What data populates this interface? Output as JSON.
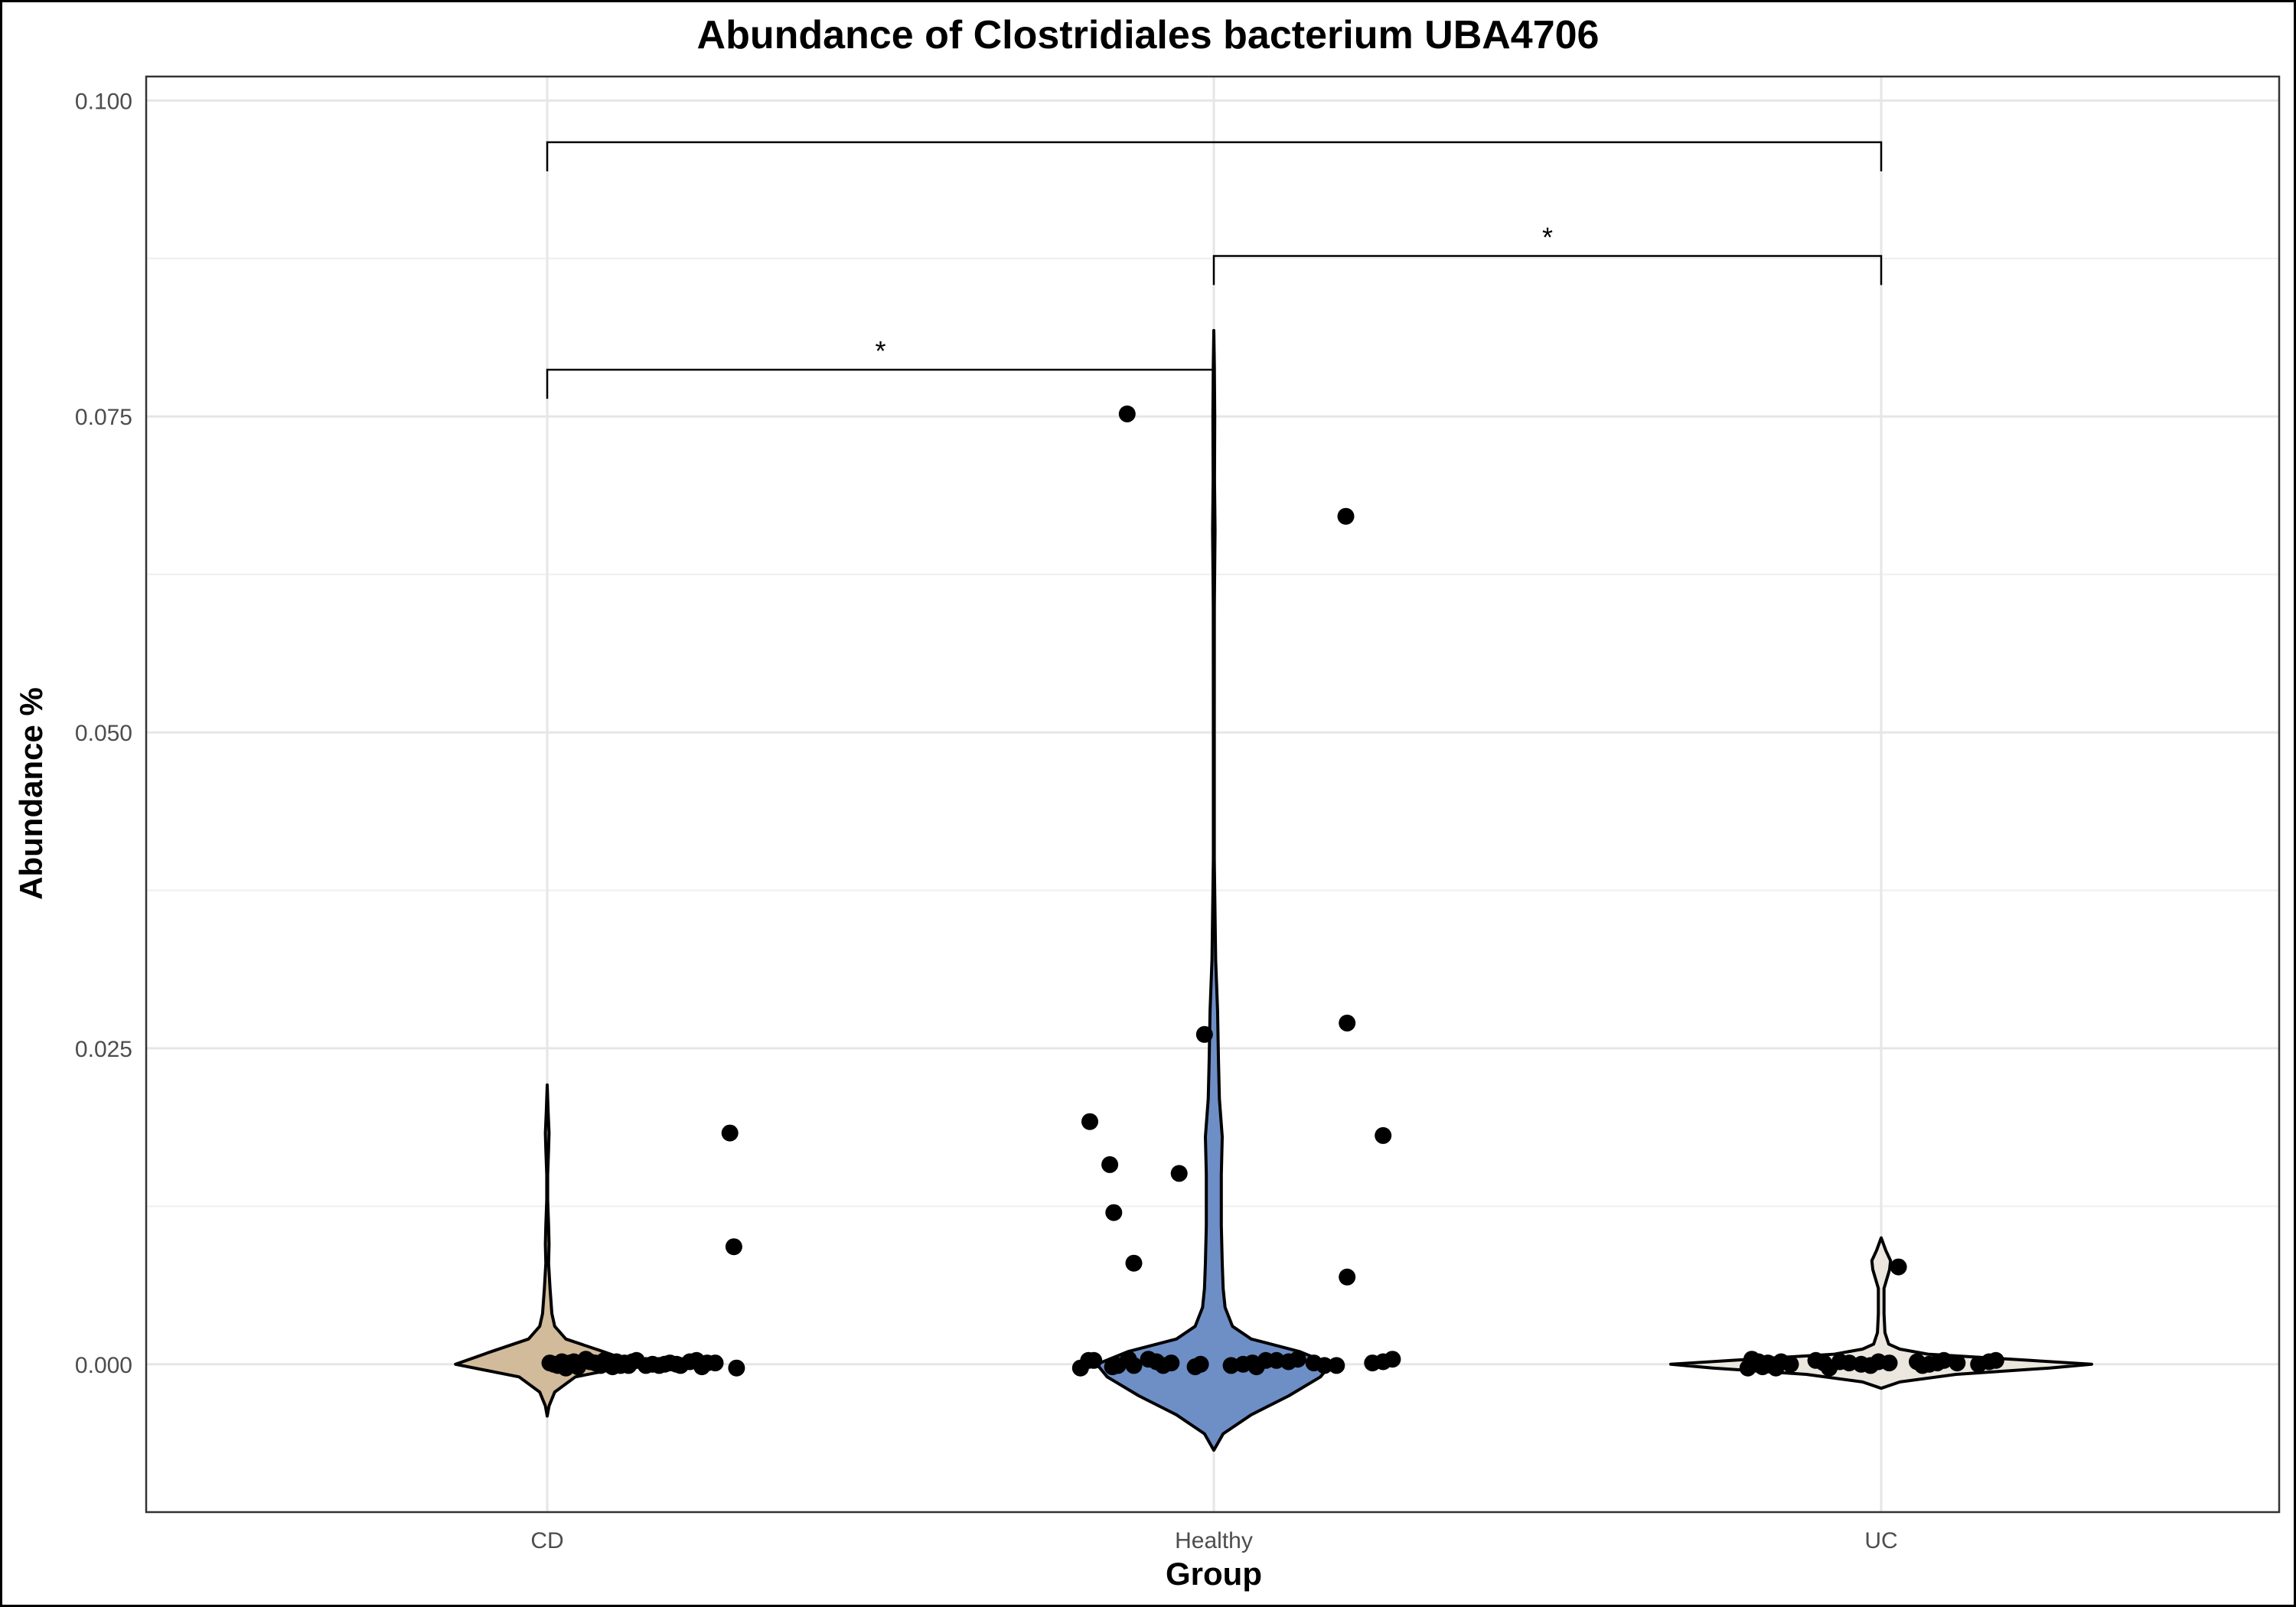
{
  "chart_data": {
    "type": "violin",
    "title": "Abundance of Clostridiales bacterium UBA4706",
    "xlabel": "Group",
    "ylabel": "Abundance %",
    "categories": [
      "CD",
      "Healthy",
      "UC"
    ],
    "ylim": [
      -0.0117,
      0.1019
    ],
    "yticks": [
      0.0,
      0.025,
      0.05,
      0.075,
      0.1
    ],
    "ytick_labels": [
      "0.000",
      "0.025",
      "0.050",
      "0.075",
      "0.100"
    ],
    "grid": true,
    "legend": "none",
    "colors": {
      "CD": "#d2bb9b",
      "Healthy": "#6e8ec6",
      "UC": "#ebe7df"
    },
    "violins": [
      {
        "group": "CD",
        "ymin": -0.0041,
        "ymax": 0.0221,
        "profile": [
          [
            -0.0041,
            0.0
          ],
          [
            -0.0033,
            0.002
          ],
          [
            -0.0022,
            0.008
          ],
          [
            -0.001,
            0.03
          ],
          [
            0.0,
            0.098
          ],
          [
            0.001,
            0.06
          ],
          [
            0.002,
            0.02
          ],
          [
            0.003,
            0.008
          ],
          [
            0.004,
            0.005
          ],
          [
            0.006,
            0.003
          ],
          [
            0.008,
            0.0015
          ],
          [
            0.0095,
            0.002
          ],
          [
            0.011,
            0.0015
          ],
          [
            0.013,
            0.0005
          ],
          [
            0.015,
            0.0005
          ],
          [
            0.017,
            0.0015
          ],
          [
            0.0183,
            0.002
          ],
          [
            0.02,
            0.001
          ],
          [
            0.0221,
            0.0
          ]
        ],
        "points": [
          [
            0.004,
            0.0001
          ],
          [
            0.01,
            0.0
          ],
          [
            0.016,
            -0.0001
          ],
          [
            0.022,
            0.0002
          ],
          [
            0.028,
            -0.0003
          ],
          [
            0.034,
            0.0001
          ],
          [
            0.04,
            0.0002
          ],
          [
            0.046,
            -0.0002
          ],
          [
            0.058,
            0.0004
          ],
          [
            0.064,
            0.0002
          ],
          [
            0.072,
            0.0001
          ],
          [
            0.08,
            -0.0001
          ],
          [
            0.086,
            0.0003
          ],
          [
            0.092,
            0.0001
          ],
          [
            0.098,
            -0.0002
          ],
          [
            0.104,
            0.0002
          ],
          [
            0.11,
            -0.0001
          ],
          [
            0.116,
            0.0001
          ],
          [
            0.122,
            -0.0001
          ],
          [
            0.128,
            0.0002
          ],
          [
            0.134,
            0.0003
          ],
          [
            0.148,
            -0.0001
          ],
          [
            0.158,
            0.0
          ],
          [
            0.168,
            -0.0001
          ],
          [
            0.176,
            0.0
          ],
          [
            0.184,
            0.0001
          ],
          [
            0.194,
            0.0
          ],
          [
            0.2,
            -0.0001
          ],
          [
            0.214,
            0.0002
          ],
          [
            0.224,
            0.0003
          ],
          [
            0.232,
            -0.0002
          ],
          [
            0.24,
            0.0001
          ],
          [
            0.252,
            0.0001
          ],
          [
            0.284,
            -0.0003
          ],
          [
            0.274,
            0.0183
          ],
          [
            0.28,
            0.0093
          ]
        ]
      },
      {
        "group": "Healthy",
        "ymin": -0.0068,
        "ymax": 0.0818,
        "profile": [
          [
            -0.0068,
            0.0
          ],
          [
            -0.0055,
            0.01
          ],
          [
            -0.004,
            0.04
          ],
          [
            -0.0025,
            0.08
          ],
          [
            -0.001,
            0.114
          ],
          [
            0.0,
            0.125
          ],
          [
            0.001,
            0.092
          ],
          [
            0.002,
            0.04
          ],
          [
            0.003,
            0.02
          ],
          [
            0.0045,
            0.012
          ],
          [
            0.006,
            0.01
          ],
          [
            0.008,
            0.009
          ],
          [
            0.011,
            0.008
          ],
          [
            0.015,
            0.008
          ],
          [
            0.018,
            0.009
          ],
          [
            0.021,
            0.006
          ],
          [
            0.024,
            0.005
          ],
          [
            0.028,
            0.004
          ],
          [
            0.032,
            0.002
          ],
          [
            0.04,
            0.0005
          ],
          [
            0.05,
            0.0005
          ],
          [
            0.06,
            0.0006
          ],
          [
            0.066,
            0.0013
          ],
          [
            0.07,
            0.0007
          ],
          [
            0.075,
            0.001
          ],
          [
            0.079,
            0.0006
          ],
          [
            0.0818,
            0.0
          ]
        ],
        "points": [
          [
            -0.2,
            -0.0003
          ],
          [
            -0.188,
            0.0003
          ],
          [
            -0.18,
            0.0003
          ],
          [
            -0.152,
            -0.0002
          ],
          [
            -0.144,
            -0.0001
          ],
          [
            -0.128,
            0.0004
          ],
          [
            -0.12,
            -0.0001
          ],
          [
            -0.098,
            0.0004
          ],
          [
            -0.086,
            0.0002
          ],
          [
            -0.076,
            -0.0001
          ],
          [
            -0.064,
            0.0001
          ],
          [
            -0.028,
            -0.0002
          ],
          [
            -0.02,
            0.0
          ],
          [
            0.026,
            -0.0001
          ],
          [
            0.044,
            0.0
          ],
          [
            0.058,
            0.0001
          ],
          [
            0.064,
            -0.0002
          ],
          [
            0.078,
            0.0003
          ],
          [
            0.094,
            0.0003
          ],
          [
            0.112,
            0.0002
          ],
          [
            0.126,
            0.0004
          ],
          [
            0.15,
            0.0001
          ],
          [
            0.166,
            -0.0001
          ],
          [
            0.184,
            -0.0001
          ],
          [
            0.238,
            0.0001
          ],
          [
            0.254,
            0.0002
          ],
          [
            0.268,
            0.0004
          ],
          [
            -0.13,
            0.0752
          ],
          [
            0.198,
            0.0671
          ],
          [
            -0.014,
            0.0261
          ],
          [
            0.2,
            0.027
          ],
          [
            -0.186,
            0.0192
          ],
          [
            -0.156,
            0.0158
          ],
          [
            -0.052,
            0.0151
          ],
          [
            0.254,
            0.0181
          ],
          [
            -0.15,
            0.012
          ],
          [
            -0.12,
            0.008
          ],
          [
            0.2,
            0.0069
          ]
        ]
      },
      {
        "group": "UC",
        "ymin": -0.0019,
        "ymax": 0.01,
        "profile": [
          [
            -0.0019,
            0.0
          ],
          [
            -0.0014,
            0.02
          ],
          [
            -0.0008,
            0.08
          ],
          [
            -0.0003,
            0.18
          ],
          [
            0.0,
            0.225
          ],
          [
            0.0003,
            0.16
          ],
          [
            0.0008,
            0.05
          ],
          [
            0.0012,
            0.02
          ],
          [
            0.0016,
            0.008
          ],
          [
            0.0025,
            0.004
          ],
          [
            0.004,
            0.003
          ],
          [
            0.006,
            0.003
          ],
          [
            0.0075,
            0.009
          ],
          [
            0.0082,
            0.01
          ],
          [
            0.009,
            0.005
          ],
          [
            0.01,
            0.0
          ]
        ],
        "points": [
          [
            -0.2,
            -0.0003
          ],
          [
            -0.194,
            0.0004
          ],
          [
            -0.184,
            0.0002
          ],
          [
            -0.178,
            -0.0002
          ],
          [
            -0.17,
            0.0001
          ],
          [
            -0.158,
            -0.0003
          ],
          [
            -0.15,
            0.0002
          ],
          [
            -0.136,
            0.0
          ],
          [
            -0.098,
            0.0003
          ],
          [
            -0.086,
            0.0001
          ],
          [
            -0.078,
            -0.0003
          ],
          [
            -0.062,
            0.0002
          ],
          [
            -0.048,
            0.0001
          ],
          [
            -0.03,
            0.0
          ],
          [
            -0.016,
            -0.0001
          ],
          [
            -0.004,
            0.0002
          ],
          [
            0.012,
            0.0001
          ],
          [
            0.054,
            0.0002
          ],
          [
            0.062,
            -0.0001
          ],
          [
            0.072,
            0.0
          ],
          [
            0.084,
            0.0001
          ],
          [
            0.094,
            0.0003
          ],
          [
            0.114,
            0.0001
          ],
          [
            0.146,
            0.0
          ],
          [
            0.162,
            0.0002
          ],
          [
            0.172,
            0.0003
          ],
          [
            0.026,
            0.0077
          ]
        ]
      }
    ],
    "comparisons": [
      {
        "from": "CD",
        "to": "Healthy",
        "y": 0.0787,
        "label": "*"
      },
      {
        "from": "Healthy",
        "to": "UC",
        "y": 0.0877,
        "label": "*"
      },
      {
        "from": "CD",
        "to": "UC",
        "y": 0.0967,
        "label": ""
      }
    ]
  }
}
